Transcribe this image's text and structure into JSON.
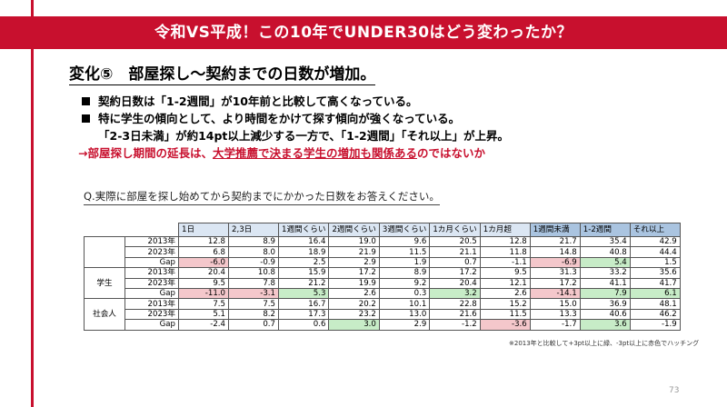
{
  "title": "令和VS平成！この10年でUNDER30はどう変わったか？",
  "heading": "変化⑤　部屋探し～契約までの日数が増加。",
  "bullets": {
    "b1": "契約日数は「1-2週間」が10年前と比較して高くなっている。",
    "b2": "特に学生の傾向として、より時間をかけて探す傾向が強くなっている。",
    "b2_cont": "「2-3日未満」が約14pt以上減少する一方で、「1-2週間」「それ以上」が上昇。",
    "conclusion_prefix": "→部屋探し期間の延長は、",
    "conclusion_emph": "大学推薦で決まる学生の増加も関係ある",
    "conclusion_suffix": "のではないか"
  },
  "question": "Q.実際に部屋を探し始めてから契約までにかかった日数をお答えください。",
  "table": {
    "headers": [
      "1日",
      "2,3日",
      "1週間くらい",
      "2週間くらい",
      "3週間くらい",
      "1カ月くらい",
      "1カ月超",
      "1週間未満",
      "1-2週間",
      "それ以上"
    ],
    "groups": [
      {
        "name": "",
        "rows": [
          {
            "label": "2013年",
            "values": [
              "12.8",
              "8.9",
              "16.4",
              "19.0",
              "9.6",
              "20.5",
              "12.8",
              "21.7",
              "35.4",
              "42.9"
            ]
          },
          {
            "label": "2023年",
            "values": [
              "6.8",
              "8.0",
              "18.9",
              "21.9",
              "11.5",
              "21.1",
              "11.8",
              "14.8",
              "40.8",
              "44.4"
            ]
          },
          {
            "label": "Gap",
            "values": [
              "-6.0",
              "-0.9",
              "2.5",
              "2.9",
              "1.9",
              "0.7",
              "-1.1",
              "-6.9",
              "5.4",
              "1.5"
            ]
          }
        ]
      },
      {
        "name": "学生",
        "rows": [
          {
            "label": "2013年",
            "values": [
              "20.4",
              "10.8",
              "15.9",
              "17.2",
              "8.9",
              "17.2",
              "9.5",
              "31.3",
              "33.2",
              "35.6"
            ]
          },
          {
            "label": "2023年",
            "values": [
              "9.5",
              "7.8",
              "21.2",
              "19.9",
              "9.2",
              "20.4",
              "12.1",
              "17.2",
              "41.1",
              "41.7"
            ]
          },
          {
            "label": "Gap",
            "values": [
              "-11.0",
              "-3.1",
              "5.3",
              "2.6",
              "0.3",
              "3.2",
              "2.6",
              "-14.1",
              "7.9",
              "6.1"
            ]
          }
        ]
      },
      {
        "name": "社会人",
        "rows": [
          {
            "label": "2013年",
            "values": [
              "7.5",
              "7.5",
              "16.7",
              "20.2",
              "10.1",
              "22.8",
              "15.2",
              "15.0",
              "36.9",
              "48.1"
            ]
          },
          {
            "label": "2023年",
            "values": [
              "5.1",
              "8.2",
              "17.3",
              "23.2",
              "13.0",
              "21.6",
              "11.5",
              "13.3",
              "40.6",
              "46.2"
            ]
          },
          {
            "label": "Gap",
            "values": [
              "-2.4",
              "0.7",
              "0.6",
              "3.0",
              "2.9",
              "-1.2",
              "-3.6",
              "-1.7",
              "3.6",
              "-1.9"
            ]
          }
        ]
      }
    ]
  },
  "note": "※2013年と比較して+3pt以上に緑、-3pt以上に赤色でハッチング",
  "page_number": "73",
  "colors": {
    "brand_red": "#c8102e",
    "highlight_green": "#c7ecc7",
    "highlight_red": "#f4c7cb"
  }
}
